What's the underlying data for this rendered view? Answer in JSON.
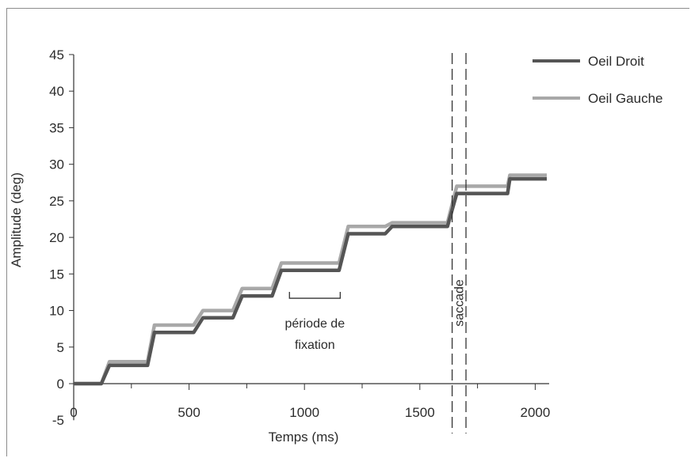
{
  "chart_data": {
    "type": "line",
    "xlabel": "Temps (ms)",
    "ylabel": "Amplitude (deg)",
    "xlim": [
      0,
      2050
    ],
    "ylim": [
      -5,
      45
    ],
    "x_ticks": [
      0,
      500,
      1000,
      1500,
      2000
    ],
    "x_tick_labels": [
      "0",
      "500",
      "1000",
      "1500",
      "2000"
    ],
    "y_ticks": [
      -5,
      0,
      5,
      10,
      15,
      20,
      25,
      30,
      35,
      40,
      45
    ],
    "y_tick_labels": [
      "-5",
      "0",
      "5",
      "10",
      "15",
      "20",
      "25",
      "30",
      "35",
      "40",
      "45"
    ],
    "legend_position": "top-right",
    "series": [
      {
        "name": "Oeil Droit",
        "color": "#555555",
        "x": [
          0,
          120,
          155,
          320,
          350,
          520,
          560,
          690,
          730,
          860,
          900,
          1150,
          1190,
          1350,
          1380,
          1620,
          1660,
          1880,
          1890,
          2050
        ],
        "y": [
          0,
          0,
          2.5,
          2.5,
          7,
          7,
          9,
          9,
          12,
          12,
          15.5,
          15.5,
          20.5,
          20.5,
          21.5,
          21.5,
          26,
          26,
          28,
          28
        ]
      },
      {
        "name": "Oeil Gauche",
        "color": "#a8a8a8",
        "x": [
          0,
          120,
          155,
          320,
          350,
          520,
          560,
          690,
          730,
          860,
          900,
          1150,
          1190,
          1350,
          1380,
          1620,
          1660,
          1880,
          1890,
          2050
        ],
        "y": [
          0,
          0,
          3,
          3,
          8,
          8,
          10,
          10,
          13,
          13,
          16.5,
          16.5,
          21.5,
          21.5,
          22,
          22,
          27,
          27,
          28.5,
          28.5
        ]
      }
    ],
    "annotations": [
      {
        "text_lines": [
          "période de",
          "fixation"
        ],
        "bracket_x": [
          935,
          1155
        ],
        "bracket_y": 12
      },
      {
        "text": "saccade",
        "x_range": [
          1640,
          1700
        ],
        "orientation": "vertical"
      }
    ]
  }
}
